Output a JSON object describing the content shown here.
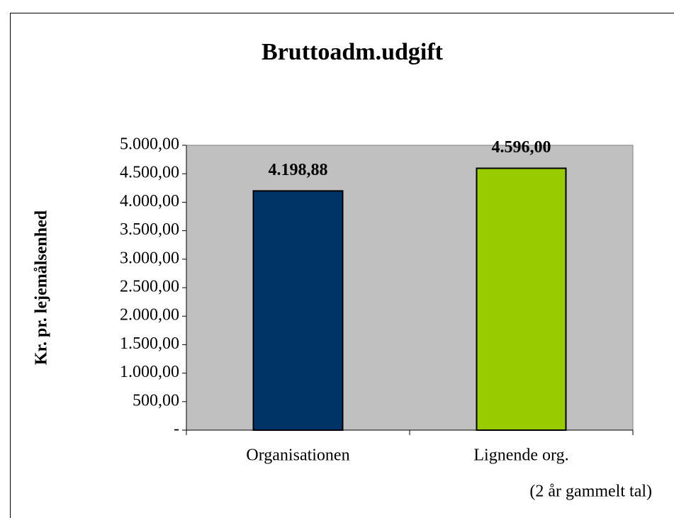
{
  "chart_data": {
    "type": "bar",
    "title": "Bruttoadm.udgift",
    "ylabel": "Kr. pr. lejemålsenhed",
    "categories": [
      "Organisationen",
      "Lignende org."
    ],
    "values": [
      4198.88,
      4596
    ],
    "value_labels": [
      "4.198,88",
      "4.596,00"
    ],
    "colors": [
      "#003366",
      "#99cc00"
    ],
    "ylim": [
      0,
      5000
    ],
    "yticks": [
      {
        "value": 0,
        "label": "-"
      },
      {
        "value": 500,
        "label": "500,00"
      },
      {
        "value": 1000,
        "label": "1.000,00"
      },
      {
        "value": 1500,
        "label": "1.500,00"
      },
      {
        "value": 2000,
        "label": "2.000,00"
      },
      {
        "value": 2500,
        "label": "2.500,00"
      },
      {
        "value": 3000,
        "label": "3.000,00"
      },
      {
        "value": 3500,
        "label": "3.500,00"
      },
      {
        "value": 4000,
        "label": "4.000,00"
      },
      {
        "value": 4500,
        "label": "4.500,00"
      },
      {
        "value": 5000,
        "label": "5.000,00"
      }
    ],
    "annotation": "(2 år gammelt tal)",
    "plot_background": "#c0c0c0"
  }
}
